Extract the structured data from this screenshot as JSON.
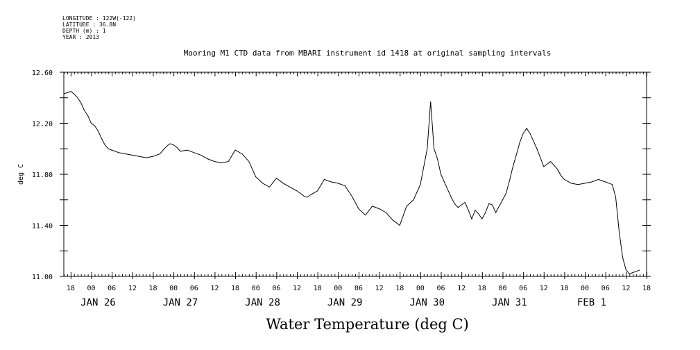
{
  "meta": {
    "longitude": "LONGITUDE : 122W(-122)",
    "latitude": "LATITUDE : 36.8N",
    "depth": "DEPTH (m) : 1",
    "year": "YEAR : 2013"
  },
  "chart_data": {
    "type": "line",
    "title": "Mooring M1 CTD data from MBARI instrument id 1418 at original sampling intervals",
    "xlabel": "Water Temperature (deg C)",
    "ylabel": "deg C",
    "ylim": [
      11.0,
      12.6
    ],
    "yticks": [
      "11.00",
      "11.40",
      "11.80",
      "12.20",
      "12.60"
    ],
    "xlim_hours": [
      -8,
      162
    ],
    "hour_tick_labels": [
      "18",
      "00",
      "06",
      "12",
      "18",
      "00",
      "06",
      "12",
      "18",
      "00",
      "06",
      "12",
      "18",
      "00",
      "06",
      "12",
      "18",
      "00",
      "06",
      "12",
      "18",
      "00",
      "06",
      "12",
      "18",
      "00",
      "06",
      "12",
      "18"
    ],
    "day_labels": [
      "JAN 26",
      "JAN 27",
      "JAN 28",
      "JAN 29",
      "JAN 30",
      "JAN 31",
      "FEB  1"
    ],
    "series": [
      {
        "x": [
          -8,
          -6,
          -5,
          -4,
          -3,
          -2,
          -1,
          0,
          1,
          2,
          3,
          4,
          5,
          6,
          8,
          10,
          12,
          14,
          16,
          18,
          20,
          22,
          23,
          24,
          25,
          26,
          28,
          30,
          32,
          34,
          36,
          38,
          40,
          42,
          44,
          46,
          47,
          48,
          50,
          52,
          54,
          56,
          58,
          60,
          62,
          63,
          64,
          66,
          68,
          70,
          72,
          74,
          76,
          77,
          78,
          80,
          82,
          84,
          86,
          88,
          90,
          92,
          94,
          96,
          98,
          99,
          100,
          101,
          102,
          104,
          105,
          106,
          107,
          108,
          109,
          110,
          111,
          112,
          113,
          114,
          115,
          116,
          117,
          118,
          119,
          120,
          121,
          122,
          123,
          124,
          125,
          126,
          127,
          128,
          130,
          132,
          134,
          135,
          136,
          137,
          138,
          140,
          142,
          144,
          146,
          148,
          150,
          152,
          153,
          154,
          155,
          156,
          157,
          158,
          159,
          160
        ],
        "y": [
          12.43,
          12.45,
          12.43,
          12.4,
          12.36,
          12.3,
          12.26,
          12.2,
          12.18,
          12.14,
          12.08,
          12.03,
          12.0,
          11.99,
          11.97,
          11.96,
          11.95,
          11.94,
          11.93,
          11.94,
          11.96,
          12.02,
          12.04,
          12.03,
          12.01,
          11.98,
          11.99,
          11.97,
          11.95,
          11.92,
          11.9,
          11.89,
          11.9,
          11.99,
          11.96,
          11.9,
          11.84,
          11.78,
          11.73,
          11.7,
          11.77,
          11.73,
          11.7,
          11.67,
          11.63,
          11.62,
          11.64,
          11.67,
          11.76,
          11.74,
          11.73,
          11.71,
          11.63,
          11.58,
          11.53,
          11.48,
          11.55,
          11.53,
          11.5,
          11.44,
          11.4,
          11.55,
          11.6,
          11.72,
          12.0,
          12.37,
          12.0,
          11.92,
          11.8,
          11.68,
          11.62,
          11.57,
          11.54,
          11.56,
          11.58,
          11.52,
          11.45,
          11.52,
          11.49,
          11.45,
          11.5,
          11.57,
          11.56,
          11.5,
          11.55,
          11.6,
          11.65,
          11.75,
          11.86,
          11.95,
          12.05,
          12.12,
          12.16,
          12.12,
          12.0,
          11.86,
          11.9,
          11.87,
          11.84,
          11.79,
          11.76,
          11.73,
          11.72,
          11.73,
          11.74,
          11.76,
          11.74,
          11.72,
          11.62,
          11.35,
          11.15,
          11.05,
          11.02,
          11.03,
          11.04,
          11.05
        ]
      }
    ]
  }
}
